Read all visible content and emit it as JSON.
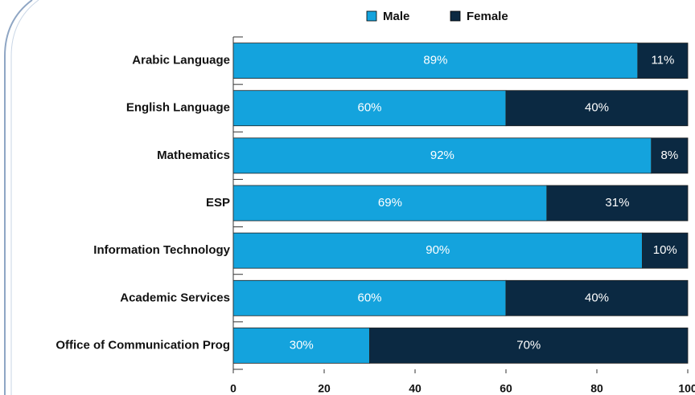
{
  "chart_data": {
    "type": "stacked-barh",
    "categories": [
      "Arabic Language",
      "English Language",
      "Mathematics",
      "ESP",
      "Information Technology",
      "Academic Services",
      "Office of Communication Prog"
    ],
    "series": [
      {
        "name": "Male",
        "color": "#14a3dd",
        "values": [
          89,
          60,
          92,
          69,
          90,
          60,
          30
        ],
        "value_labels": [
          "89%",
          "60%",
          "92%",
          "69%",
          "90%",
          "60%",
          "30%"
        ]
      },
      {
        "name": "Female",
        "color": "#0b2942",
        "values": [
          11,
          40,
          8,
          31,
          10,
          40,
          70
        ],
        "value_labels": [
          "11%",
          "40%",
          "8%",
          "31%",
          "10%",
          "40%",
          "70%"
        ]
      }
    ],
    "xlim": [
      0,
      100
    ],
    "xticks": [
      0,
      20,
      40,
      60,
      80,
      100
    ]
  }
}
